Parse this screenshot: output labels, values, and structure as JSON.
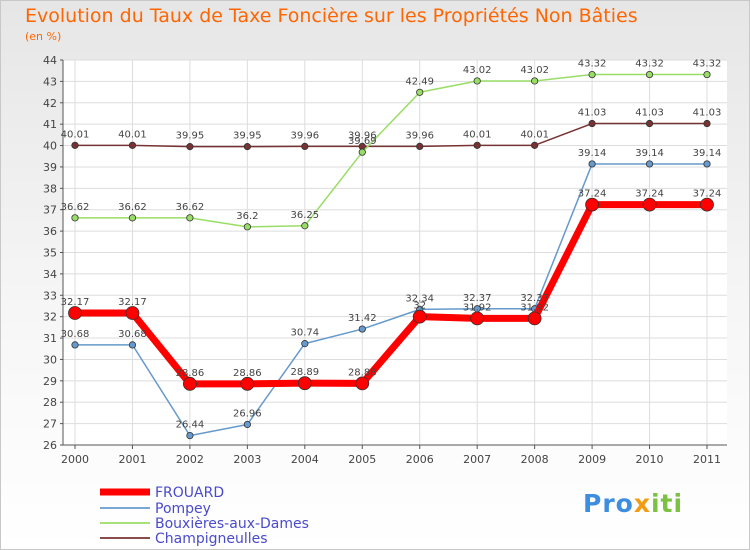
{
  "chart_data": {
    "type": "line",
    "title": "Evolution du Taux de Taxe Foncière sur les Propriétés Non Bâties",
    "ylabel": "(en %)",
    "xlabel": "",
    "ylim": [
      26,
      44
    ],
    "yticks": [
      26,
      27,
      28,
      29,
      30,
      31,
      32,
      33,
      34,
      35,
      36,
      37,
      38,
      39,
      40,
      41,
      42,
      43,
      44
    ],
    "categories": [
      "2000",
      "2001",
      "2002",
      "2003",
      "2004",
      "2005",
      "2006",
      "2007",
      "2008",
      "2009",
      "2010",
      "2011"
    ],
    "series": [
      {
        "name": "FROUARD",
        "color": "#ff0000",
        "values": [
          32.17,
          32.17,
          28.86,
          28.86,
          28.89,
          28.88,
          32,
          31.92,
          31.92,
          37.24,
          37.24,
          37.24
        ],
        "labels": [
          "32.17",
          "32.17",
          "28.86",
          "28.86",
          "28.89",
          "28.88",
          "32",
          "31.92",
          "31.92",
          "37.24",
          "37.24",
          "37.24"
        ]
      },
      {
        "name": "Pompey",
        "color": "#6699cc",
        "values": [
          30.68,
          30.68,
          26.44,
          26.96,
          30.74,
          31.42,
          32.34,
          32.37,
          32.37,
          39.14,
          39.14,
          39.14
        ],
        "labels": [
          "30.68",
          "30.68",
          "26.44",
          "26.96",
          "30.74",
          "31.42",
          "32.34",
          "32.37",
          "32.37",
          "39.14",
          "39.14",
          "39.14"
        ]
      },
      {
        "name": "Bouxières-aux-Dames",
        "color": "#99dd66",
        "values": [
          36.62,
          36.62,
          36.62,
          36.2,
          36.25,
          39.69,
          42.49,
          43.02,
          43.02,
          43.32,
          43.32,
          43.32
        ],
        "labels": [
          "36.62",
          "36.62",
          "36.62",
          "36.2",
          "36.25",
          "39.69",
          "42.49",
          "43.02",
          "43.02",
          "43.32",
          "43.32",
          "43.32"
        ]
      },
      {
        "name": "Champigneulles",
        "color": "#773333",
        "values": [
          40.01,
          40.01,
          39.95,
          39.95,
          39.96,
          39.96,
          39.96,
          40.01,
          40.01,
          41.03,
          41.03,
          41.03
        ],
        "labels": [
          "40.01",
          "40.01",
          "39.95",
          "39.95",
          "39.96",
          "39.96",
          "39.96",
          "40.01",
          "40.01",
          "41.03",
          "41.03",
          "41.03"
        ]
      }
    ],
    "grid": true,
    "legend": "bottom-left"
  },
  "logo": {
    "p": "Pro",
    "x": "x",
    "t": "iti"
  }
}
